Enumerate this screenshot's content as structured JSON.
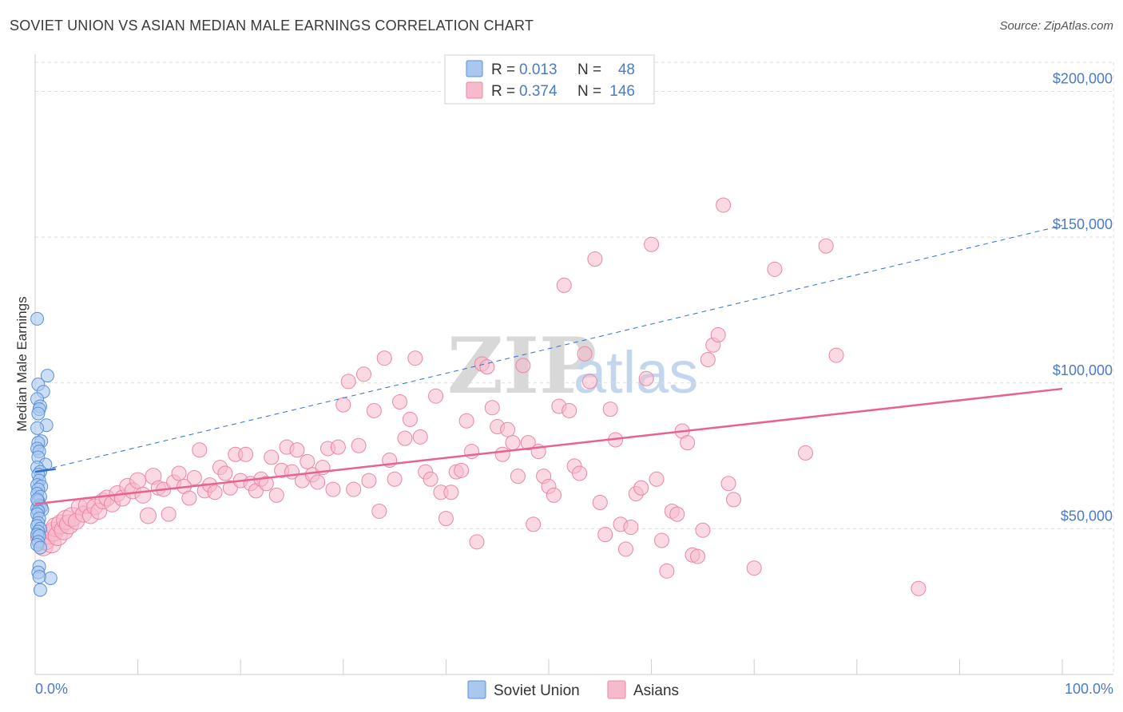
{
  "header": {
    "title": "SOVIET UNION VS ASIAN MEDIAN MALE EARNINGS CORRELATION CHART",
    "source": "Source: ZipAtlas.com"
  },
  "watermark": {
    "zip": "ZIP",
    "atlas": "atlas"
  },
  "colors": {
    "blue_fill": "#a8c8f0",
    "blue_stroke": "#5b8fd6",
    "blue_line": "#2f6fd0",
    "pink_fill": "#f7b9cc",
    "pink_stroke": "#e887a6",
    "pink_line": "#e8628f",
    "grid": "#dddddd",
    "axis_text": "#4a7bc8"
  },
  "legend": {
    "row1": {
      "r_label": "R =",
      "r_value": "0.013",
      "n_label": "N =",
      "n_value": "48"
    },
    "row2": {
      "r_label": "R =",
      "r_value": "0.374",
      "n_label": "N =",
      "n_value": "146"
    }
  },
  "bottom_legend": {
    "item1": "Soviet Union",
    "item2": "Asians"
  },
  "chart_data": {
    "type": "scatter",
    "title": "SOVIET UNION VS ASIAN MEDIAN MALE EARNINGS CORRELATION CHART",
    "xlabel": "",
    "ylabel": "Median Male Earnings",
    "xlim": [
      0,
      100
    ],
    "ylim": [
      0,
      210000
    ],
    "x_tick_labels": [
      "0.0%",
      "100.0%"
    ],
    "y_ticks": [
      50000,
      100000,
      150000,
      200000
    ],
    "y_tick_labels": [
      "$50,000",
      "$100,000",
      "$150,000",
      "$200,000"
    ],
    "legend_position": "top-center",
    "series": [
      {
        "name": "Soviet Union",
        "r": 0.013,
        "n": 48,
        "trend": {
          "x": [
            0,
            2
          ],
          "y": [
            69500,
            70500
          ]
        },
        "trend_extension": {
          "x": [
            0,
            100
          ],
          "y": [
            69500,
            154000
          ]
        },
        "points": [
          [
            0.2,
            122000
          ],
          [
            1.2,
            102500
          ],
          [
            0.3,
            99500
          ],
          [
            0.8,
            97000
          ],
          [
            0.2,
            94500
          ],
          [
            0.5,
            92000
          ],
          [
            0.4,
            91000
          ],
          [
            0.3,
            89500
          ],
          [
            1.1,
            85500
          ],
          [
            0.2,
            84500
          ],
          [
            0.6,
            80000
          ],
          [
            0.3,
            79500
          ],
          [
            0.2,
            77500
          ],
          [
            0.4,
            76500
          ],
          [
            0.3,
            74500
          ],
          [
            1.0,
            72000
          ],
          [
            0.2,
            71000
          ],
          [
            0.5,
            69500
          ],
          [
            0.3,
            68500
          ],
          [
            0.4,
            66500
          ],
          [
            0.2,
            65000
          ],
          [
            0.6,
            64500
          ],
          [
            0.3,
            63500
          ],
          [
            0.2,
            62000
          ],
          [
            0.5,
            61000
          ],
          [
            0.3,
            59500
          ],
          [
            0.4,
            58000
          ],
          [
            0.6,
            57500
          ],
          [
            0.2,
            57000
          ],
          [
            0.7,
            56500
          ],
          [
            0.3,
            56000
          ],
          [
            0.2,
            55000
          ],
          [
            0.4,
            53500
          ],
          [
            0.3,
            52000
          ],
          [
            0.2,
            51000
          ],
          [
            0.5,
            50000
          ],
          [
            0.3,
            49000
          ],
          [
            0.2,
            48000
          ],
          [
            0.4,
            47500
          ],
          [
            0.3,
            45500
          ],
          [
            0.2,
            44500
          ],
          [
            0.5,
            43500
          ],
          [
            0.4,
            37000
          ],
          [
            0.3,
            35000
          ],
          [
            1.5,
            33000
          ],
          [
            0.4,
            33500
          ],
          [
            0.5,
            29000
          ],
          [
            0.2,
            60000
          ]
        ]
      },
      {
        "name": "Asians",
        "r": 0.374,
        "n": 146,
        "trend": {
          "x": [
            0,
            100
          ],
          "y": [
            58500,
            98000
          ]
        },
        "points": [
          [
            0.5,
            47000
          ],
          [
            0.8,
            44000
          ],
          [
            1.0,
            46000
          ],
          [
            1.3,
            48000
          ],
          [
            1.6,
            45000
          ],
          [
            1.8,
            49000
          ],
          [
            2.0,
            50500
          ],
          [
            2.2,
            47500
          ],
          [
            2.5,
            51500
          ],
          [
            2.8,
            49500
          ],
          [
            3.0,
            53000
          ],
          [
            3.3,
            51500
          ],
          [
            3.6,
            54000
          ],
          [
            4.0,
            52500
          ],
          [
            4.3,
            57500
          ],
          [
            4.7,
            55000
          ],
          [
            5.0,
            58000
          ],
          [
            5.4,
            54500
          ],
          [
            5.8,
            57500
          ],
          [
            6.2,
            56000
          ],
          [
            6.6,
            59500
          ],
          [
            7.0,
            60500
          ],
          [
            7.5,
            58500
          ],
          [
            8.0,
            62000
          ],
          [
            8.5,
            60500
          ],
          [
            9.0,
            64500
          ],
          [
            9.5,
            63000
          ],
          [
            10.0,
            66500
          ],
          [
            10.5,
            61500
          ],
          [
            11.0,
            54500
          ],
          [
            11.5,
            68000
          ],
          [
            12.0,
            64000
          ],
          [
            12.5,
            63500
          ],
          [
            13.0,
            55000
          ],
          [
            13.5,
            66000
          ],
          [
            14.0,
            69000
          ],
          [
            14.5,
            64500
          ],
          [
            15.0,
            60500
          ],
          [
            15.5,
            67500
          ],
          [
            16.0,
            77000
          ],
          [
            16.5,
            63000
          ],
          [
            17.0,
            65000
          ],
          [
            17.5,
            62500
          ],
          [
            18.0,
            71000
          ],
          [
            18.5,
            69000
          ],
          [
            19.0,
            64000
          ],
          [
            19.5,
            75500
          ],
          [
            20.0,
            66500
          ],
          [
            20.5,
            75500
          ],
          [
            21.0,
            65500
          ],
          [
            21.5,
            63000
          ],
          [
            22.0,
            67000
          ],
          [
            22.5,
            65500
          ],
          [
            23.0,
            74500
          ],
          [
            23.5,
            61500
          ],
          [
            24.0,
            70000
          ],
          [
            24.5,
            78000
          ],
          [
            25.0,
            69500
          ],
          [
            25.5,
            77000
          ],
          [
            26.0,
            66500
          ],
          [
            26.5,
            73000
          ],
          [
            27.0,
            68500
          ],
          [
            27.5,
            66000
          ],
          [
            28.0,
            71000
          ],
          [
            28.5,
            77500
          ],
          [
            29.0,
            63500
          ],
          [
            29.5,
            78000
          ],
          [
            30.0,
            92500
          ],
          [
            30.5,
            100500
          ],
          [
            31.0,
            63500
          ],
          [
            31.5,
            78500
          ],
          [
            32.0,
            103000
          ],
          [
            32.5,
            66500
          ],
          [
            33.0,
            90500
          ],
          [
            33.5,
            56000
          ],
          [
            34.0,
            108500
          ],
          [
            34.5,
            73500
          ],
          [
            35.0,
            67000
          ],
          [
            35.5,
            93500
          ],
          [
            36.0,
            81000
          ],
          [
            36.5,
            87500
          ],
          [
            37.0,
            108500
          ],
          [
            37.5,
            81500
          ],
          [
            38.0,
            69500
          ],
          [
            38.5,
            67000
          ],
          [
            39.0,
            95500
          ],
          [
            39.5,
            62500
          ],
          [
            40.0,
            53500
          ],
          [
            40.5,
            62500
          ],
          [
            41.0,
            69500
          ],
          [
            41.5,
            70000
          ],
          [
            42.0,
            87000
          ],
          [
            42.5,
            76500
          ],
          [
            43.0,
            45500
          ],
          [
            43.5,
            106500
          ],
          [
            44.0,
            105500
          ],
          [
            44.5,
            91500
          ],
          [
            45.0,
            85000
          ],
          [
            45.5,
            75500
          ],
          [
            46.0,
            84000
          ],
          [
            46.5,
            79500
          ],
          [
            47.0,
            68000
          ],
          [
            47.5,
            106000
          ],
          [
            48.0,
            79500
          ],
          [
            48.5,
            51500
          ],
          [
            49.0,
            76500
          ],
          [
            49.5,
            68000
          ],
          [
            50.0,
            64500
          ],
          [
            50.5,
            61500
          ],
          [
            51.0,
            92000
          ],
          [
            51.5,
            133500
          ],
          [
            52.0,
            90500
          ],
          [
            52.5,
            71500
          ],
          [
            53.0,
            69000
          ],
          [
            53.5,
            110000
          ],
          [
            54.0,
            100500
          ],
          [
            54.5,
            142500
          ],
          [
            55.0,
            59000
          ],
          [
            55.5,
            48000
          ],
          [
            56.0,
            91000
          ],
          [
            56.5,
            80500
          ],
          [
            57.0,
            51500
          ],
          [
            57.5,
            43000
          ],
          [
            58.0,
            50500
          ],
          [
            58.5,
            62000
          ],
          [
            59.0,
            64000
          ],
          [
            59.5,
            101500
          ],
          [
            60.0,
            147500
          ],
          [
            60.5,
            67000
          ],
          [
            61.0,
            46000
          ],
          [
            61.5,
            35500
          ],
          [
            62.0,
            56000
          ],
          [
            62.5,
            55000
          ],
          [
            63.0,
            83500
          ],
          [
            63.5,
            79500
          ],
          [
            64.0,
            41000
          ],
          [
            64.5,
            40500
          ],
          [
            65.0,
            49500
          ],
          [
            65.5,
            108000
          ],
          [
            66.0,
            113000
          ],
          [
            66.5,
            116500
          ],
          [
            67.0,
            161000
          ],
          [
            67.5,
            65500
          ],
          [
            68.0,
            60000
          ],
          [
            70.0,
            36500
          ],
          [
            72.0,
            139000
          ],
          [
            75.0,
            76000
          ],
          [
            77.0,
            147000
          ],
          [
            78.0,
            109500
          ],
          [
            86.0,
            29500
          ]
        ]
      }
    ]
  }
}
